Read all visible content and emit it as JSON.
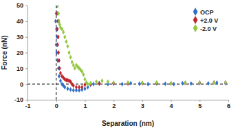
{
  "chart_data": {
    "type": "scatter",
    "x_label": "Separation (nm)",
    "y_label": "Force (nN)",
    "xlim": [
      -1,
      6
    ],
    "xticks": [
      -1,
      0,
      1,
      2,
      3,
      4,
      5,
      6
    ],
    "ylim": [
      -10,
      50
    ],
    "yticks": [
      -10,
      0,
      10,
      20,
      30,
      40,
      50
    ],
    "legend": "top-right",
    "marker": "diamond",
    "reference_lines": [
      {
        "axis": "x",
        "value": 0
      },
      {
        "axis": "y",
        "value": 0
      }
    ],
    "series": [
      {
        "name": "OCP",
        "color": "#2f6fc6",
        "x": [
          0.02,
          0.0,
          -0.02,
          0.01,
          0.03,
          0.0,
          0.02,
          0.05,
          0.08,
          0.1,
          0.15,
          0.2,
          0.25,
          0.3,
          0.4,
          0.5,
          0.6,
          0.7,
          0.8,
          0.9,
          1.0,
          1.1,
          1.2,
          1.3,
          1.5,
          1.8,
          2.0,
          2.3,
          2.6,
          2.9,
          3.2,
          3.5,
          3.8,
          4.1,
          4.4,
          4.7,
          5.0,
          5.3,
          5.6,
          5.9
        ],
        "values": [
          50,
          45,
          40,
          35,
          30,
          25,
          20,
          15,
          10,
          5,
          2,
          0,
          -1,
          -2,
          -3,
          -3.5,
          -4,
          -4,
          -4,
          -3.5,
          -3,
          -2,
          -0.5,
          0,
          0.5,
          0,
          0.3,
          0,
          0.5,
          0.2,
          0,
          0.4,
          0.2,
          0,
          0.5,
          0.3,
          0.6,
          0.4,
          0.8,
          0.5
        ]
      },
      {
        "name": "+2.0 V",
        "color": "#c0272d",
        "x": [
          0.05,
          0.03,
          0.06,
          0.04,
          0.07,
          0.05,
          0.08,
          0.1,
          0.12,
          0.15,
          0.2,
          0.25,
          0.3,
          0.35,
          0.4,
          0.45,
          0.5,
          0.55,
          0.6,
          0.7,
          0.8,
          0.9,
          1.0,
          1.2,
          1.5,
          2.0,
          2.5,
          3.0,
          3.5,
          4.0,
          4.5,
          5.0,
          5.5,
          5.9
        ],
        "values": [
          50,
          45,
          40,
          35,
          30,
          25,
          20,
          15,
          10,
          7,
          5,
          4,
          3,
          2.5,
          2.5,
          2,
          1.5,
          0,
          -1,
          -2,
          -2,
          -2,
          -0.5,
          0,
          0.3,
          0.5,
          0.3,
          0.5,
          0.6,
          0.4,
          0.7,
          0.8,
          1,
          1
        ]
      },
      {
        "name": "-2.0 V",
        "color": "#92c83e",
        "x": [
          0.05,
          0.08,
          0.1,
          0.12,
          0.15,
          0.2,
          0.25,
          0.3,
          0.35,
          0.4,
          0.45,
          0.5,
          0.55,
          0.6,
          0.65,
          0.7,
          0.75,
          0.8,
          0.85,
          0.9,
          0.95,
          1.0,
          1.05,
          1.1,
          1.2,
          1.4,
          1.6,
          1.8,
          2.0,
          2.5,
          3.0,
          3.5,
          4.0,
          4.5,
          5.0,
          5.5,
          5.9
        ],
        "values": [
          50,
          45,
          40,
          38,
          36,
          35,
          33,
          30,
          27,
          24,
          20,
          17,
          14,
          12,
          10,
          12,
          11,
          10,
          9,
          8,
          6,
          3,
          1,
          0,
          0.5,
          1.5,
          2,
          1.5,
          1,
          1,
          0.8,
          1,
          0.5,
          0.8,
          1,
          0.7,
          1
        ]
      }
    ]
  }
}
